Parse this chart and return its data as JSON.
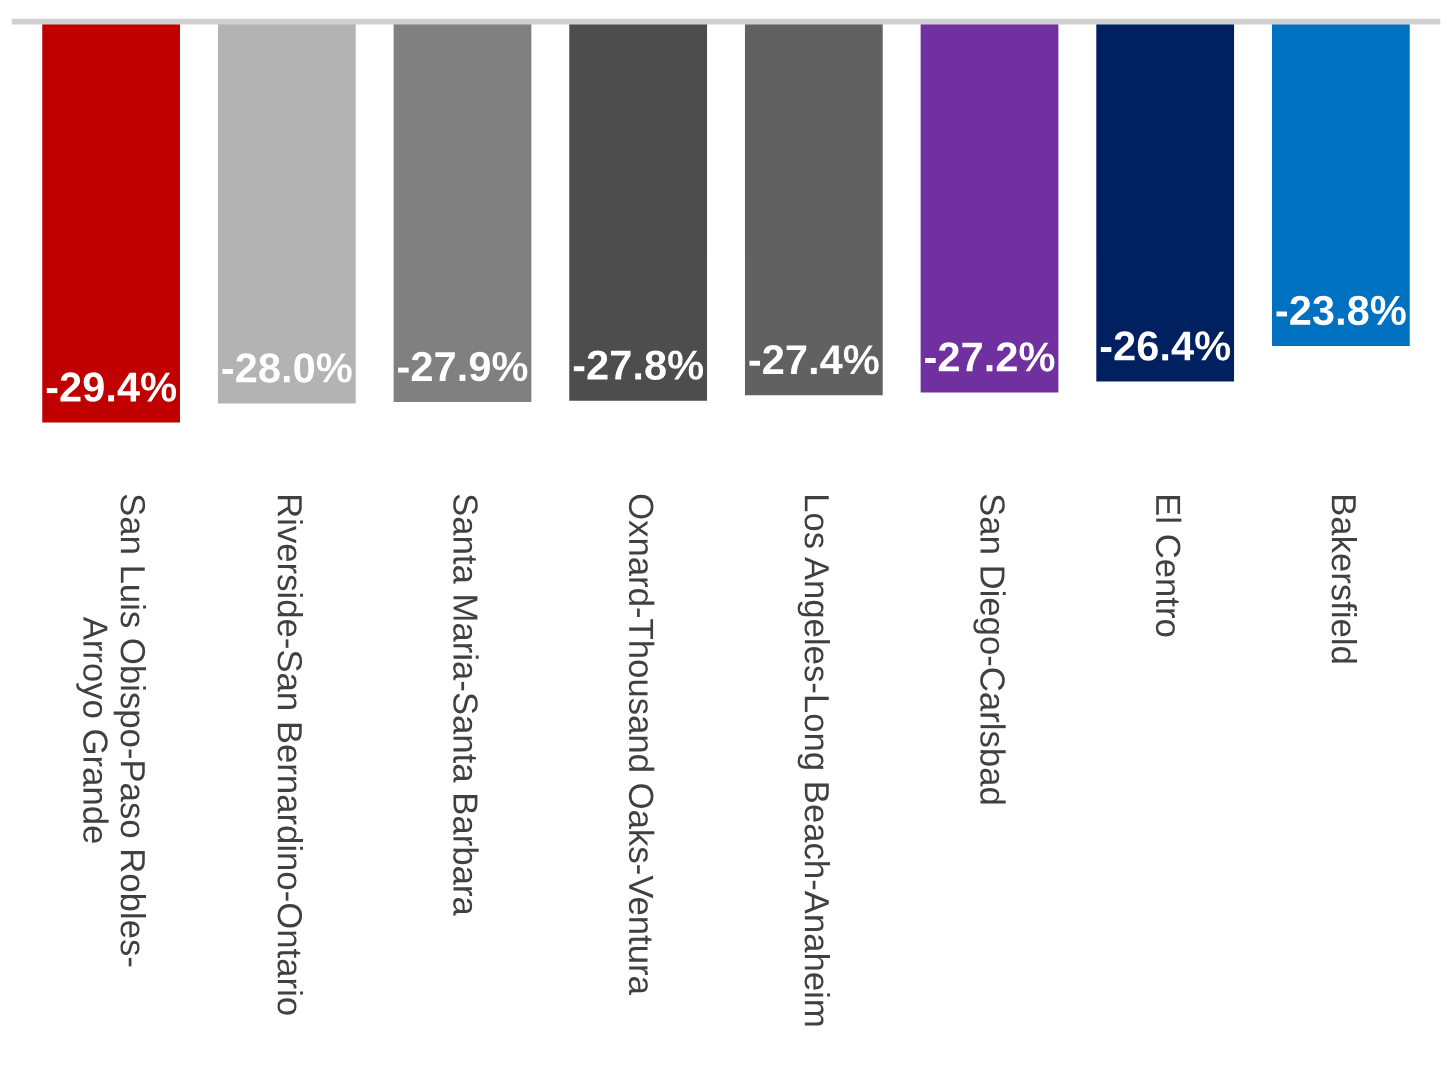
{
  "chart_data": {
    "type": "bar",
    "categories": [
      "San Luis Obispo-Paso Robles-\nArroyo Grande",
      "Riverside-San Bernardino-Ontario",
      "Santa Maria-Santa Barbara",
      "Oxnard-Thousand Oaks-Ventura",
      "Los Angeles-Long Beach-Anaheim",
      "San Diego-Carlsbad",
      "El Centro",
      "Bakersfield"
    ],
    "values": [
      -29.4,
      -28.0,
      -27.9,
      -27.8,
      -27.4,
      -27.2,
      -26.4,
      -23.8
    ],
    "colors": [
      "#c00000",
      "#b3b3b3",
      "#808080",
      "#4d4d4d",
      "#616161",
      "#7030a0",
      "#002060",
      "#0070c0"
    ],
    "value_labels": [
      "-29.4%",
      "-28.0%",
      "-27.9%",
      "-27.8%",
      "-27.4%",
      "-27.2%",
      "-26.4%",
      "-23.8%"
    ],
    "tick_labels": "x",
    "grid": false,
    "legend": false
  }
}
